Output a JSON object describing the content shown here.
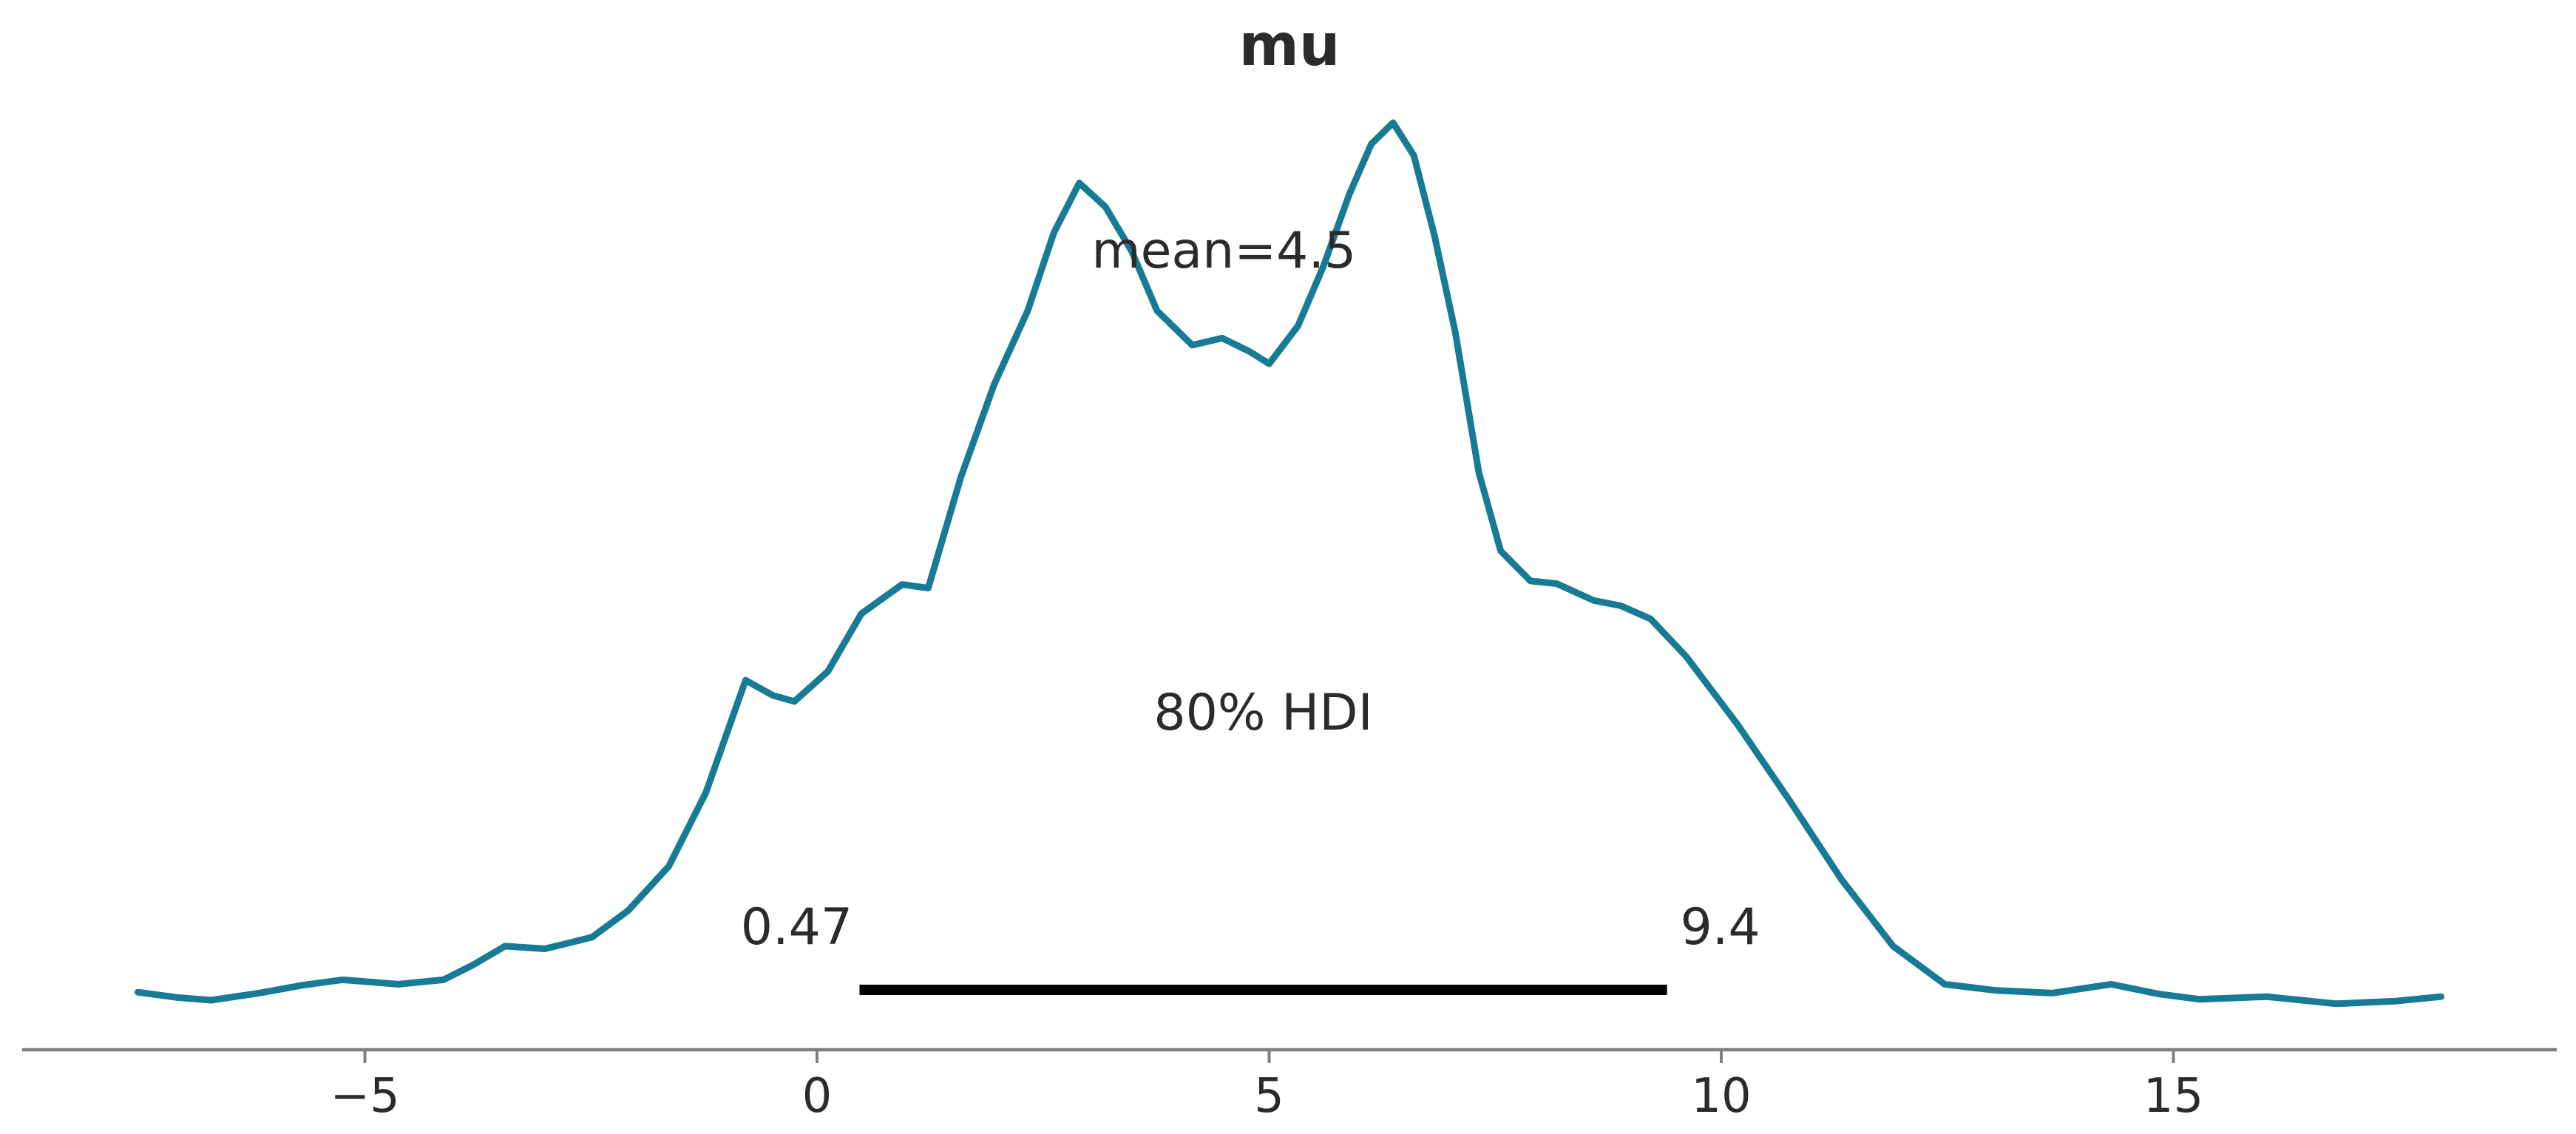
{
  "title": "mu",
  "colors": {
    "curve": "#187b95",
    "axis": "#808080",
    "text": "#2b2b2b",
    "hdi_bar": "#000000",
    "background": "#ffffff"
  },
  "labels": {
    "mean": "mean=4.5",
    "hdi": "80% HDI",
    "hdi_lower": "0.47",
    "hdi_upper": "9.4"
  },
  "x_axis": {
    "ticks": [
      {
        "value": -5,
        "label": "−5"
      },
      {
        "value": 0,
        "label": "0"
      },
      {
        "value": 5,
        "label": "5"
      },
      {
        "value": 10,
        "label": "10"
      },
      {
        "value": 15,
        "label": "15"
      }
    ]
  },
  "chart_data": {
    "type": "line",
    "subtype": "kde-posterior-density",
    "title": "mu",
    "xlabel": "",
    "ylabel": "",
    "xlim": [
      -8.8,
      19.2
    ],
    "x_ticks": [
      -5,
      0,
      5,
      10,
      15
    ],
    "grid": false,
    "legend": false,
    "y_axis_shown": false,
    "annotations": {
      "mean": 4.5,
      "hdi_probability": 0.8,
      "hdi_lower": 0.47,
      "hdi_upper": 9.4
    },
    "series": [
      {
        "name": "posterior density of mu (KDE, height normalized to peak = 1)",
        "x": [
          -7.51,
          -7.07,
          -6.7,
          -6.17,
          -5.68,
          -5.25,
          -4.63,
          -4.13,
          -3.8,
          -3.45,
          -3.01,
          -2.49,
          -2.09,
          -1.64,
          -1.23,
          -0.79,
          -0.49,
          -0.25,
          0.12,
          0.49,
          0.94,
          1.23,
          1.59,
          1.96,
          2.33,
          2.62,
          2.9,
          3.19,
          3.48,
          3.76,
          4.05,
          4.15,
          4.48,
          4.78,
          5.0,
          5.32,
          5.6,
          5.89,
          6.13,
          6.37,
          6.6,
          6.83,
          7.06,
          7.32,
          7.56,
          7.89,
          8.18,
          8.59,
          8.89,
          9.22,
          9.61,
          10.18,
          10.75,
          11.33,
          11.9,
          12.47,
          13.04,
          13.66,
          14.31,
          14.84,
          15.29,
          16.03,
          16.8,
          17.46,
          17.96
        ],
        "y": [
          0.019,
          0.013,
          0.01,
          0.018,
          0.027,
          0.033,
          0.028,
          0.033,
          0.05,
          0.071,
          0.068,
          0.081,
          0.111,
          0.161,
          0.244,
          0.371,
          0.354,
          0.347,
          0.381,
          0.446,
          0.479,
          0.475,
          0.6,
          0.705,
          0.788,
          0.876,
          0.932,
          0.905,
          0.855,
          0.788,
          0.759,
          0.749,
          0.757,
          0.742,
          0.728,
          0.771,
          0.838,
          0.92,
          0.976,
          1.0,
          0.963,
          0.872,
          0.763,
          0.605,
          0.517,
          0.483,
          0.48,
          0.461,
          0.455,
          0.44,
          0.398,
          0.321,
          0.236,
          0.146,
          0.071,
          0.028,
          0.021,
          0.018,
          0.028,
          0.017,
          0.011,
          0.014,
          0.006,
          0.009,
          0.014
        ]
      }
    ]
  }
}
